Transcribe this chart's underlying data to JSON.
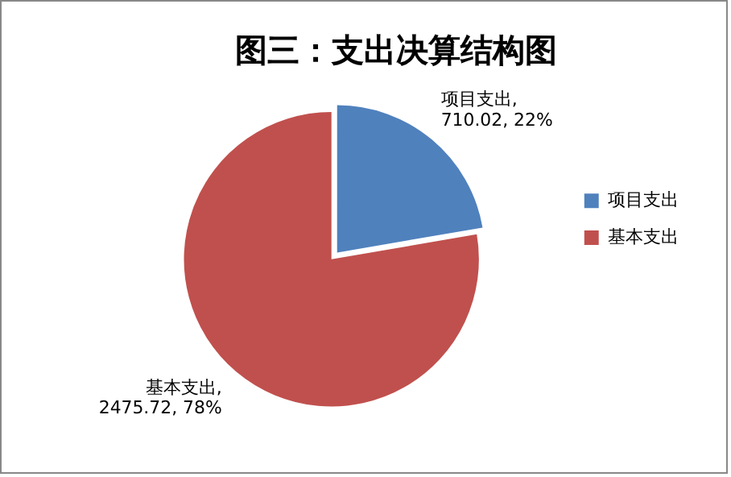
{
  "chart_data": {
    "type": "pie",
    "title": "图三：支出决算结构图",
    "categories": [
      "项目支出",
      "基本支出"
    ],
    "values": [
      710.02,
      2475.72
    ],
    "colors": [
      "#4f81bd",
      "#c0504d"
    ],
    "value_labels": [
      "项目支出, 710.02, 22%",
      "基本支出, 2475.72, 78%"
    ],
    "legend": "right"
  }
}
